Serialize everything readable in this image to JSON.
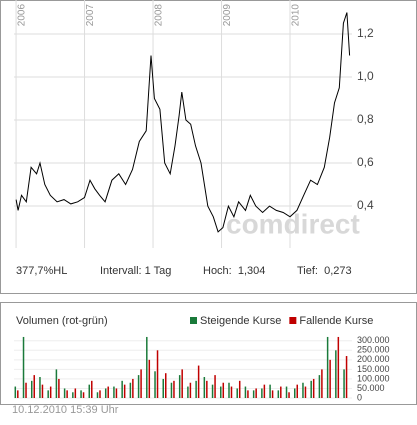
{
  "chart_data": [
    {
      "type": "line",
      "x": [
        2006.0,
        2006.03,
        2006.08,
        2006.15,
        2006.22,
        2006.3,
        2006.35,
        2006.42,
        2006.5,
        2006.6,
        2006.7,
        2006.8,
        2006.9,
        2007.0,
        2007.08,
        2007.15,
        2007.22,
        2007.3,
        2007.4,
        2007.5,
        2007.6,
        2007.7,
        2007.8,
        2007.9,
        2007.97,
        2008.02,
        2008.1,
        2008.17,
        2008.25,
        2008.32,
        2008.38,
        2008.42,
        2008.48,
        2008.55,
        2008.62,
        2008.7,
        2008.8,
        2008.88,
        2008.95,
        2009.02,
        2009.1,
        2009.18,
        2009.25,
        2009.35,
        2009.42,
        2009.5,
        2009.6,
        2009.7,
        2009.8,
        2009.9,
        2010.0,
        2010.1,
        2010.2,
        2010.3,
        2010.4,
        2010.5,
        2010.58,
        2010.65,
        2010.72,
        2010.78,
        2010.83,
        2010.87
      ],
      "series": [
        {
          "color": "#000000",
          "values": [
            0.43,
            0.38,
            0.45,
            0.42,
            0.58,
            0.55,
            0.6,
            0.5,
            0.45,
            0.42,
            0.43,
            0.41,
            0.42,
            0.44,
            0.52,
            0.48,
            0.45,
            0.42,
            0.52,
            0.55,
            0.5,
            0.57,
            0.7,
            0.75,
            1.1,
            0.9,
            0.85,
            0.6,
            0.55,
            0.68,
            0.82,
            0.93,
            0.8,
            0.78,
            0.68,
            0.6,
            0.4,
            0.35,
            0.28,
            0.3,
            0.4,
            0.35,
            0.42,
            0.38,
            0.45,
            0.4,
            0.37,
            0.4,
            0.38,
            0.37,
            0.35,
            0.38,
            0.45,
            0.52,
            0.5,
            0.58,
            0.72,
            0.88,
            0.95,
            1.25,
            1.3,
            1.1
          ]
        }
      ],
      "xlim": [
        2005.97,
        2010.905
      ],
      "xticks": [
        2006,
        2007,
        2008,
        2009,
        2010
      ],
      "ylim": [
        0.205,
        1.358
      ],
      "yticks": [
        {
          "value": 0.4,
          "label": "0,4"
        },
        {
          "value": 0.6,
          "label": "0,6"
        },
        {
          "value": 0.8,
          "label": "0,8"
        },
        {
          "value": 1.0,
          "label": "1,0"
        },
        {
          "value": 1.2,
          "label": "1,2"
        }
      ],
      "grid": true,
      "watermark": "comdirect"
    },
    {
      "type": "bar",
      "title": "Volumen (rot-grün)",
      "x": [
        2006.0,
        2006.12,
        2006.24,
        2006.36,
        2006.48,
        2006.6,
        2006.72,
        2006.84,
        2006.96,
        2007.08,
        2007.2,
        2007.32,
        2007.44,
        2007.56,
        2007.68,
        2007.8,
        2007.92,
        2008.04,
        2008.16,
        2008.28,
        2008.4,
        2008.52,
        2008.64,
        2008.76,
        2008.88,
        2009.0,
        2009.12,
        2009.24,
        2009.36,
        2009.48,
        2009.6,
        2009.72,
        2009.84,
        2009.96,
        2010.08,
        2010.2,
        2010.32,
        2010.44,
        2010.56,
        2010.68,
        2010.8
      ],
      "series": [
        {
          "name": "Steigende Kurse",
          "color": "#1a7a3a",
          "values": [
            60000,
            320000,
            90000,
            110000,
            40000,
            150000,
            50000,
            30000,
            40000,
            70000,
            30000,
            50000,
            60000,
            90000,
            80000,
            120000,
            320000,
            140000,
            100000,
            80000,
            120000,
            60000,
            90000,
            110000,
            70000,
            60000,
            80000,
            50000,
            60000,
            40000,
            50000,
            70000,
            40000,
            60000,
            50000,
            80000,
            90000,
            120000,
            320000,
            250000,
            150000
          ]
        },
        {
          "name": "Fallende Kurse",
          "color": "#c00000",
          "values": [
            40000,
            80000,
            120000,
            70000,
            60000,
            100000,
            40000,
            50000,
            30000,
            90000,
            40000,
            60000,
            50000,
            70000,
            100000,
            150000,
            200000,
            250000,
            130000,
            90000,
            150000,
            80000,
            170000,
            90000,
            120000,
            80000,
            60000,
            90000,
            40000,
            50000,
            70000,
            40000,
            60000,
            30000,
            70000,
            60000,
            100000,
            150000,
            200000,
            320000,
            220000
          ]
        }
      ],
      "xlim": [
        2005.97,
        2010.905
      ],
      "ylim": [
        0,
        325000
      ],
      "yticks": [
        0,
        {
          "value": 50000,
          "label": "50.000"
        },
        {
          "value": 100000,
          "label": "100.000"
        },
        {
          "value": 150000,
          "label": "150.000"
        },
        {
          "value": 200000,
          "label": "200.000"
        },
        {
          "value": 250000,
          "label": "250.000"
        },
        {
          "value": 300000,
          "label": "300.000"
        }
      ]
    }
  ],
  "info": {
    "hl": "377,7%HL",
    "interval": "Intervall: 1 Tag",
    "high": "Hoch:  1,304",
    "low": "Tief:  0,273",
    "timestamp": "10.12.2010 15:39 Uhr"
  }
}
